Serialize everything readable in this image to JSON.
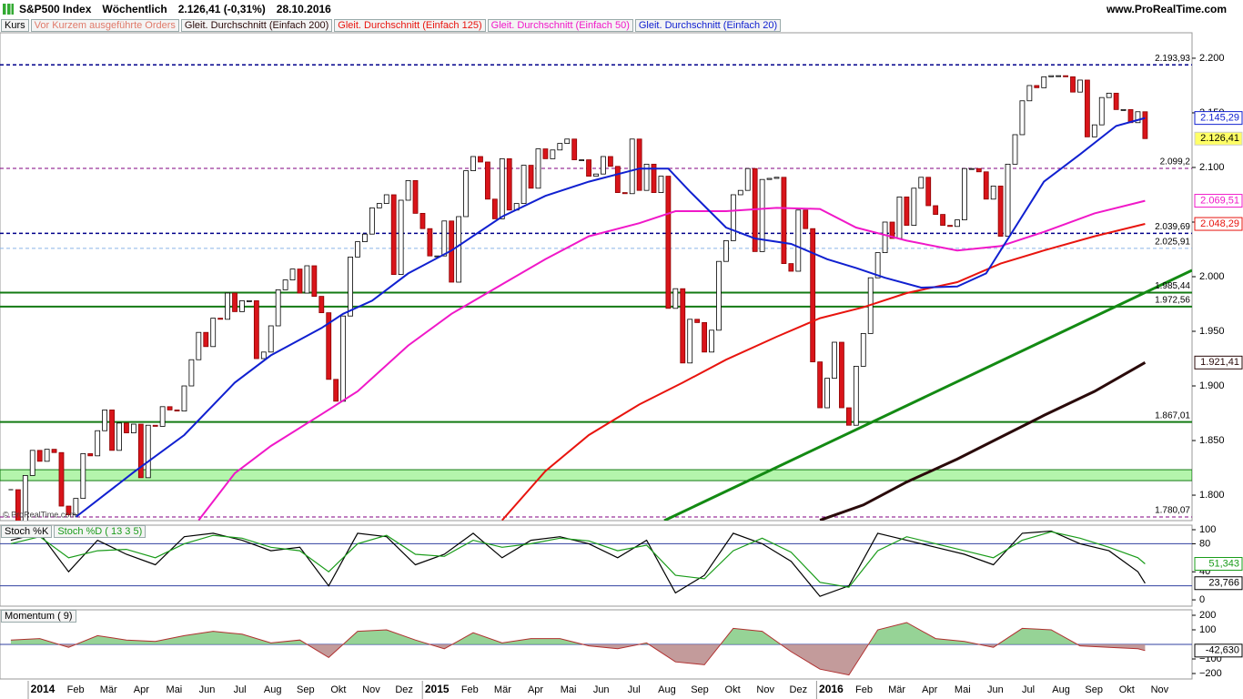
{
  "chart_data": [
    {
      "type": "candlestick",
      "title": "S&P500 Index",
      "period": "Wöchentlich",
      "last": "2.126,41 (-0,31%)",
      "date": "28.10.2016",
      "source": "www.ProRealTime.com",
      "watermark": "© ProRealTime.com",
      "orders_label": "Vor Kurzem ausgeführte Orders",
      "price": {
        "name": "Kurs",
        "up_color": "#ffffff",
        "down_color": "#d9141a",
        "last_label": "2.126,41",
        "close": [
          1805,
          1775,
          1818,
          1841,
          1831,
          1842,
          1839,
          1790,
          1782,
          1797,
          1838,
          1836,
          1859,
          1878,
          1841,
          1866,
          1857,
          1865,
          1816,
          1864,
          1863,
          1881,
          1878,
          1877,
          1900,
          1924,
          1949,
          1936,
          1962,
          1961,
          1985,
          1968,
          1978,
          1978,
          1925,
          1931,
          1955,
          1988,
          1997,
          2007,
          1985,
          2010,
          1982,
          1967,
          1906,
          1886,
          1964,
          2018,
          2032,
          2039,
          2063,
          2067,
          2075,
          2002,
          2070,
          2088,
          2058,
          2044,
          2019,
          2019,
          2051,
          1995,
          2055,
          2097,
          2110,
          2105,
          2071,
          2053,
          2108,
          2061,
          2067,
          2102,
          2081,
          2117,
          2108,
          2116,
          2122,
          2126,
          2107,
          2107,
          2092,
          2094,
          2110,
          2101,
          2077,
          2076,
          2126,
          2079,
          2103,
          2077,
          2092,
          1971,
          1989,
          1921,
          1961,
          1958,
          1931,
          1951,
          2014,
          2033,
          2075,
          2079,
          2099,
          2023,
          2089,
          2090,
          2091,
          2012,
          2005,
          2061,
          2044,
          1922,
          1880,
          1907,
          1940,
          1880,
          1864,
          1918,
          1948,
          1999,
          2022,
          2050,
          2035,
          2073,
          2047,
          2081,
          2091,
          2065,
          2057,
          2047,
          2046,
          2052,
          2099,
          2099,
          2096,
          2071,
          2083,
          2037,
          2103,
          2130,
          2161,
          2175,
          2173,
          2183,
          2184,
          2184,
          2183,
          2169,
          2180,
          2128,
          2139,
          2164,
          2168,
          2153,
          2153,
          2141,
          2151,
          2126.41
        ]
      },
      "series": [
        {
          "name": "Gleit. Durchschnitt (Einfach 200)",
          "color": "#2a0a0a",
          "last_label": "1.921,41",
          "x": [
            112,
            118,
            124,
            131,
            137,
            143,
            150,
            157
          ],
          "values": [
            1777,
            1791,
            1812,
            1833,
            1853,
            1873,
            1895,
            1921.41
          ]
        },
        {
          "name": "Gleit. Durchschnitt (Einfach 125)",
          "color": "#e8140e",
          "last_label": "2.048,29",
          "x": [
            68,
            74,
            80,
            87,
            93,
            99,
            106,
            112,
            118,
            124,
            131,
            137,
            143,
            150,
            157
          ],
          "values": [
            1777,
            1822,
            1855,
            1883,
            1903,
            1924,
            1945,
            1962,
            1972,
            1985,
            1995,
            2012,
            2024,
            2037,
            2048.29
          ]
        },
        {
          "name": "Gleit. Durchschnitt (Einfach 50)",
          "color": "#f018c8",
          "last_label": "2.069,51",
          "x": [
            26,
            31,
            36,
            43,
            48,
            55,
            61,
            68,
            74,
            80,
            87,
            92,
            99,
            106,
            112,
            117,
            124,
            131,
            137,
            143,
            150,
            157
          ],
          "values": [
            1777,
            1820,
            1845,
            1874,
            1895,
            1937,
            1966,
            1993,
            2016,
            2037,
            2049,
            2060,
            2060,
            2063,
            2062,
            2045,
            2033,
            2024,
            2028,
            2041,
            2058,
            2069.51
          ]
        },
        {
          "name": "Gleit. Durchschnitt (Einfach 20)",
          "color": "#1020d0",
          "last_label": "2.145,29",
          "x": [
            9,
            17,
            24,
            31,
            36,
            43,
            46,
            50,
            55,
            61,
            68,
            74,
            80,
            87,
            91,
            94,
            99,
            103,
            108,
            113,
            117,
            121,
            126,
            131,
            135,
            139,
            143,
            148,
            153,
            157
          ],
          "values": [
            1780,
            1821,
            1855,
            1903,
            1928,
            1953,
            1966,
            1978,
            2003,
            2024,
            2055,
            2074,
            2087,
            2099,
            2099,
            2078,
            2045,
            2035,
            2030,
            2016,
            2008,
            1999,
            1990,
            1991,
            2003,
            2045,
            2087,
            2112,
            2138,
            2145.29
          ]
        }
      ],
      "xlim": [
        -1.5,
        163.5
      ],
      "ylim": [
        1776.7,
        2223.3
      ],
      "yticks": [
        {
          "value": 1800,
          "label": "1.800"
        },
        {
          "value": 1850,
          "label": "1.850"
        },
        {
          "value": 1900,
          "label": "1.900"
        },
        {
          "value": 1950,
          "label": "1.950"
        },
        {
          "value": 2000,
          "label": "2.000"
        },
        {
          "value": 2050,
          "label": "2.050"
        },
        {
          "value": 2100,
          "label": "2.100"
        },
        {
          "value": 2150,
          "label": "2.150"
        },
        {
          "value": 2200,
          "label": "2.200"
        }
      ],
      "band": {
        "from": 1813.3,
        "to": 1823.3,
        "color": "#b4f5ac"
      },
      "levels": [
        {
          "value": 2193.93,
          "label": "2.193,93",
          "color": "#00008b",
          "style": "bold-dashed"
        },
        {
          "value": 2099.2,
          "label": "2.099,2",
          "color": "#800080",
          "style": "dashed"
        },
        {
          "value": 2039.69,
          "label": "2.039,69",
          "color": "#00008b",
          "style": "bold-dashed"
        },
        {
          "value": 2025.91,
          "label": "2.025,91",
          "color": "#8ab4e8",
          "style": "dashed"
        },
        {
          "value": 1985.44,
          "label": "1.985,44",
          "color": "#137a13",
          "style": "solid"
        },
        {
          "value": 1972.56,
          "label": "1.972,56",
          "color": "#137a13",
          "style": "solid"
        },
        {
          "value": 1867.01,
          "label": "1.867,01",
          "color": "#137a13",
          "style": "solid"
        },
        {
          "value": 1780.07,
          "label": "1.780,07",
          "color": "#800080",
          "style": "dashed"
        }
      ]
    },
    {
      "type": "line",
      "series": [
        {
          "name": "Stoch %K",
          "color": "#000000",
          "last_label": "23,766",
          "x": [
            0,
            4,
            8,
            12,
            16,
            20,
            24,
            28,
            32,
            36,
            40,
            44,
            48,
            52,
            56,
            60,
            64,
            68,
            72,
            76,
            80,
            84,
            88,
            92,
            96,
            100,
            104,
            108,
            112,
            116,
            120,
            124,
            128,
            132,
            136,
            140,
            144,
            148,
            152,
            156,
            157
          ],
          "values": [
            85,
            95,
            40,
            85,
            65,
            50,
            90,
            95,
            85,
            70,
            75,
            20,
            95,
            90,
            50,
            65,
            95,
            60,
            85,
            90,
            80,
            60,
            85,
            10,
            35,
            95,
            80,
            55,
            5,
            20,
            95,
            85,
            75,
            65,
            50,
            95,
            98,
            80,
            70,
            40,
            23.766
          ]
        },
        {
          "name": "Stoch %D ( 13 3 5)",
          "color": "#1a9c1a",
          "last_label": "51,343",
          "x": [
            0,
            4,
            8,
            12,
            16,
            20,
            24,
            28,
            32,
            36,
            40,
            44,
            48,
            52,
            56,
            60,
            64,
            68,
            72,
            76,
            80,
            84,
            88,
            92,
            96,
            100,
            104,
            108,
            112,
            116,
            120,
            124,
            128,
            132,
            136,
            140,
            144,
            148,
            152,
            156,
            157
          ],
          "values": [
            80,
            90,
            60,
            70,
            72,
            60,
            80,
            92,
            88,
            75,
            70,
            40,
            80,
            92,
            65,
            62,
            85,
            75,
            80,
            88,
            84,
            70,
            78,
            35,
            30,
            70,
            88,
            68,
            25,
            18,
            70,
            90,
            80,
            70,
            60,
            85,
            97,
            88,
            75,
            60,
            51.343
          ]
        }
      ],
      "xlim": [
        -1.5,
        163.5
      ],
      "ylim": [
        -9,
        106.5
      ],
      "yticks": [
        0,
        40,
        80,
        100
      ],
      "hlines": [
        20,
        80
      ]
    },
    {
      "type": "area",
      "series": [
        {
          "name": "Momentum ( 9)",
          "color": "#b03030",
          "last_label": "-42,630",
          "x": [
            0,
            4,
            8,
            12,
            16,
            20,
            24,
            28,
            32,
            36,
            40,
            44,
            48,
            52,
            56,
            60,
            64,
            68,
            72,
            76,
            80,
            84,
            88,
            92,
            96,
            100,
            104,
            108,
            112,
            116,
            120,
            124,
            128,
            132,
            136,
            140,
            144,
            148,
            152,
            156,
            157
          ],
          "values": [
            30,
            40,
            -20,
            60,
            30,
            20,
            60,
            90,
            70,
            10,
            30,
            -90,
            90,
            100,
            30,
            -30,
            80,
            10,
            40,
            40,
            -10,
            -30,
            10,
            -120,
            -140,
            110,
            90,
            -50,
            -170,
            -210,
            100,
            150,
            40,
            20,
            -20,
            110,
            100,
            -10,
            -20,
            -30,
            -42.63
          ]
        }
      ],
      "xlim": [
        -1.5,
        163.5
      ],
      "ylim": [
        -237.5,
        237.5
      ],
      "yticks": [
        {
          "value": -200,
          "label": "−200"
        },
        {
          "value": -100,
          "label": "−100"
        },
        100,
        200
      ],
      "x_labels": [
        "2014",
        "Feb",
        "Mär",
        "Apr",
        "Mai",
        "Jun",
        "Jul",
        "Aug",
        "Sep",
        "Okt",
        "Nov",
        "Dez",
        "2015",
        "Feb",
        "Mär",
        "Apr",
        "Mai",
        "Jun",
        "Jul",
        "Aug",
        "Sep",
        "Okt",
        "Nov",
        "Dez",
        "2016",
        "Feb",
        "Mär",
        "Apr",
        "Mai",
        "Jun",
        "Jul",
        "Aug",
        "Sep",
        "Okt",
        "Nov"
      ]
    }
  ]
}
